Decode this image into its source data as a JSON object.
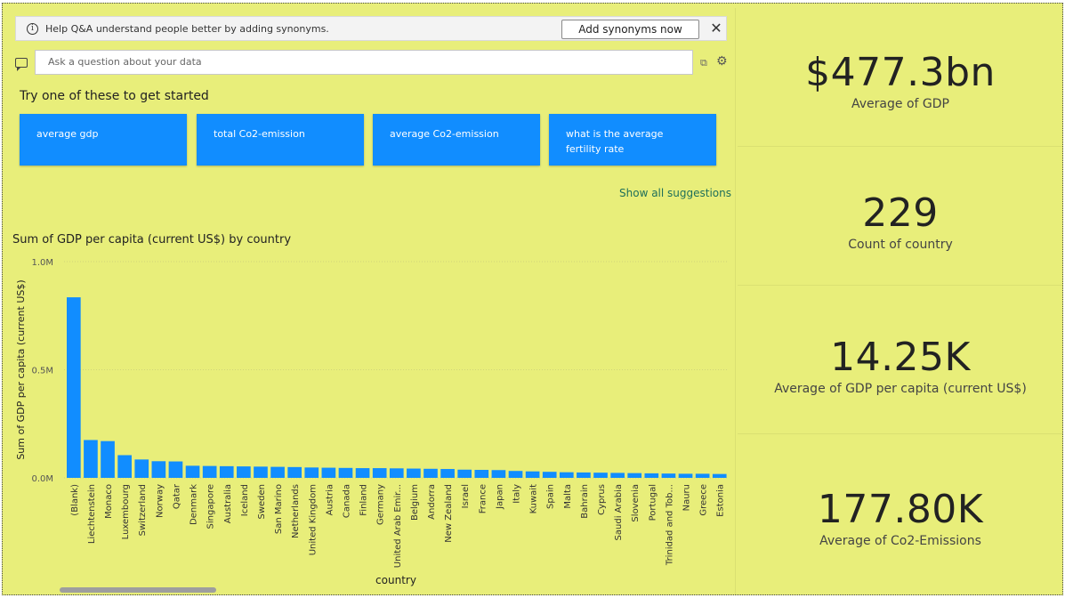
{
  "qa": {
    "notice_text": "Help Q&A understand people better by adding synonyms.",
    "add_synonyms_label": "Add synonyms now",
    "ask_placeholder": "Ask a question about your data",
    "try_title": "Try one of these to get started",
    "suggestions": [
      "average gdp",
      "total Co2-emission",
      "average Co2-emission",
      "what is the average fertility rate"
    ],
    "show_all_label": "Show all suggestions"
  },
  "chart_data": {
    "type": "bar",
    "title": "Sum of GDP per capita (current US$) by country",
    "xlabel": "country",
    "ylabel": "Sum of GDP per capita (current US$)",
    "ylim": [
      0,
      1000000
    ],
    "yticks": [
      "1.0M",
      "0.5M",
      "0.0M"
    ],
    "grid": true,
    "bar_color": "#118dff",
    "categories": [
      "(Blank)",
      "Liechtenstein",
      "Monaco",
      "Luxembourg",
      "Switzerland",
      "Norway",
      "Qatar",
      "Denmark",
      "Singapore",
      "Australia",
      "Iceland",
      "Sweden",
      "San Marino",
      "Netherlands",
      "United Kingdom",
      "Austria",
      "Canada",
      "Finland",
      "Germany",
      "United Arab Emir...",
      "Belgium",
      "Andorra",
      "New Zealand",
      "Israel",
      "France",
      "Japan",
      "Italy",
      "Kuwait",
      "Spain",
      "Malta",
      "Bahrain",
      "Cyprus",
      "Saudi Arabia",
      "Slovenia",
      "Portugal",
      "Trinidad and Tob...",
      "Nauru",
      "Greece",
      "Estonia"
    ],
    "values": [
      835000,
      175000,
      170000,
      105000,
      85000,
      77000,
      76000,
      56000,
      55000,
      54000,
      53000,
      52000,
      51000,
      50000,
      48000,
      47000,
      46000,
      45000,
      45000,
      44000,
      43000,
      42000,
      41000,
      38000,
      37000,
      36000,
      32000,
      30000,
      28000,
      26000,
      25000,
      24000,
      23000,
      22000,
      21000,
      20000,
      19000,
      19000,
      18000
    ]
  },
  "cards": [
    {
      "value": "$477.3bn",
      "label": "Average of GDP"
    },
    {
      "value": "229",
      "label": "Count of country"
    },
    {
      "value": "14.25K",
      "label": "Average of GDP per capita (current US$)"
    },
    {
      "value": "177.80K",
      "label": "Average of Co2-Emissions"
    }
  ],
  "icons": {
    "info": "info-icon",
    "close": "close-icon",
    "chat": "chat-icon",
    "convert": "convert-icon",
    "gear": "gear-icon"
  }
}
